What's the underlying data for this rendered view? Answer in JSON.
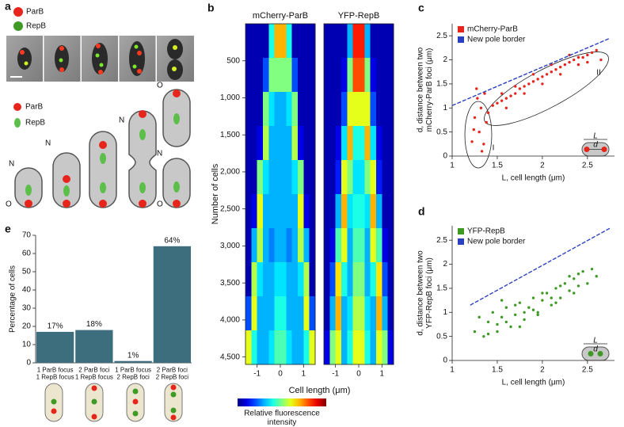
{
  "panel_labels": [
    "a",
    "b",
    "c",
    "d",
    "e"
  ],
  "panel_a": {
    "image_legend": [
      "ParB",
      "RepB"
    ],
    "diagram_legend": [
      "ParB",
      "RepB"
    ],
    "pole_labels": [
      "N",
      "O",
      "N",
      "N",
      "O",
      "N",
      "O"
    ]
  },
  "chart_data": [
    {
      "type": "heatmap",
      "colormap": "jet",
      "zlim": [
        0,
        1
      ],
      "xlabel": "Cell length (μm)",
      "ylabel": "Number of cells",
      "colorbar_label": "Relative fluorescence\nintensity",
      "xlim": [
        -1.5,
        1.5
      ],
      "xticks": [
        -1,
        0,
        1
      ],
      "ylim": [
        0,
        4600
      ],
      "y_inverted": true,
      "yticks": [
        500,
        {
          "value": 1000,
          "label": "1,000"
        },
        {
          "value": 1500,
          "label": "1,500"
        },
        {
          "value": 2000,
          "label": "2,000"
        },
        {
          "value": 2500,
          "label": "2,500"
        },
        {
          "value": 3000,
          "label": "3,000"
        },
        {
          "value": 3500,
          "label": "3,500"
        },
        {
          "value": 4000,
          "label": "4,000"
        },
        {
          "value": 4500,
          "label": "4,500"
        }
      ],
      "xbins": [
        -1.5,
        -1.25,
        -1,
        -0.75,
        -0.5,
        -0.25,
        0,
        0.25,
        0.5,
        0.75,
        1,
        1.25,
        1.5
      ],
      "ybins": [
        0,
        460,
        920,
        1380,
        1840,
        2300,
        2760,
        3220,
        3680,
        4140,
        4600
      ],
      "panels": [
        {
          "title": "mCherry-ParB",
          "z": [
            [
              0.05,
              0.05,
              0.05,
              0.05,
              0.4,
              0.7,
              0.7,
              0.4,
              0.05,
              0.05,
              0.05,
              0.05
            ],
            [
              0.05,
              0.05,
              0.05,
              0.2,
              0.5,
              0.5,
              0.5,
              0.5,
              0.2,
              0.05,
              0.05,
              0.05
            ],
            [
              0.05,
              0.05,
              0.05,
              0.5,
              0.35,
              0.3,
              0.3,
              0.35,
              0.5,
              0.05,
              0.05,
              0.05
            ],
            [
              0.05,
              0.05,
              0.1,
              0.55,
              0.3,
              0.3,
              0.3,
              0.3,
              0.55,
              0.1,
              0.05,
              0.05
            ],
            [
              0.05,
              0.05,
              0.5,
              0.35,
              0.3,
              0.3,
              0.3,
              0.3,
              0.35,
              0.5,
              0.05,
              0.05
            ],
            [
              0.05,
              0.1,
              0.6,
              0.3,
              0.3,
              0.3,
              0.3,
              0.3,
              0.3,
              0.6,
              0.1,
              0.05
            ],
            [
              0.05,
              0.3,
              0.55,
              0.3,
              0.25,
              0.3,
              0.3,
              0.25,
              0.3,
              0.55,
              0.3,
              0.05
            ],
            [
              0.05,
              0.55,
              0.35,
              0.3,
              0.3,
              0.35,
              0.35,
              0.3,
              0.3,
              0.35,
              0.55,
              0.05
            ],
            [
              0.2,
              0.6,
              0.3,
              0.3,
              0.3,
              0.4,
              0.4,
              0.3,
              0.3,
              0.3,
              0.6,
              0.2
            ],
            [
              0.6,
              0.4,
              0.3,
              0.3,
              0.35,
              0.45,
              0.45,
              0.35,
              0.3,
              0.3,
              0.4,
              0.6
            ]
          ]
        },
        {
          "title": "YFP-RepB",
          "z": [
            [
              0.05,
              0.05,
              0.05,
              0.05,
              0.3,
              0.85,
              0.85,
              0.3,
              0.05,
              0.05,
              0.05,
              0.05
            ],
            [
              0.05,
              0.05,
              0.05,
              0.1,
              0.5,
              0.8,
              0.8,
              0.5,
              0.1,
              0.05,
              0.05,
              0.05
            ],
            [
              0.05,
              0.05,
              0.05,
              0.2,
              0.6,
              0.6,
              0.6,
              0.6,
              0.2,
              0.05,
              0.05,
              0.05
            ],
            [
              0.05,
              0.05,
              0.1,
              0.35,
              0.7,
              0.4,
              0.4,
              0.7,
              0.35,
              0.1,
              0.05,
              0.05
            ],
            [
              0.05,
              0.05,
              0.15,
              0.6,
              0.5,
              0.35,
              0.35,
              0.5,
              0.6,
              0.15,
              0.05,
              0.05
            ],
            [
              0.05,
              0.05,
              0.3,
              0.7,
              0.35,
              0.4,
              0.4,
              0.35,
              0.7,
              0.3,
              0.05,
              0.05
            ],
            [
              0.05,
              0.1,
              0.45,
              0.6,
              0.3,
              0.45,
              0.45,
              0.3,
              0.6,
              0.45,
              0.1,
              0.05
            ],
            [
              0.05,
              0.2,
              0.65,
              0.4,
              0.3,
              0.5,
              0.5,
              0.3,
              0.4,
              0.65,
              0.2,
              0.05
            ],
            [
              0.05,
              0.3,
              0.7,
              0.3,
              0.35,
              0.55,
              0.55,
              0.35,
              0.3,
              0.7,
              0.3,
              0.05
            ],
            [
              0.1,
              0.5,
              0.6,
              0.3,
              0.4,
              0.6,
              0.6,
              0.4,
              0.3,
              0.6,
              0.5,
              0.1
            ]
          ]
        }
      ]
    },
    {
      "type": "scatter",
      "xlabel": "L, cell length (μm)",
      "ylabel": "d, distance between two\nmCherry-ParB foci (μm)",
      "xlim": [
        1,
        2.8
      ],
      "xticks": [
        1,
        1.5,
        2,
        2.5
      ],
      "ylim": [
        0,
        2.75
      ],
      "yticks": [
        0,
        0.5,
        1,
        1.5,
        2,
        2.5
      ],
      "annotations": [
        "I",
        "II"
      ],
      "inset_labels": [
        "L",
        "d"
      ],
      "series": [
        {
          "name": "mCherry-ParB",
          "color": "#e8251d",
          "x": [
            1.22,
            1.25,
            1.28,
            1.3,
            1.32,
            1.35,
            1.38,
            1.27,
            1.33,
            1.4,
            1.24,
            1.36,
            1.45,
            1.5,
            1.55,
            1.6,
            1.65,
            1.7,
            1.75,
            1.8,
            1.85,
            1.9,
            1.95,
            2.0,
            2.05,
            2.1,
            2.15,
            2.2,
            2.25,
            2.3,
            2.35,
            2.4,
            2.45,
            2.5,
            2.55,
            2.6,
            1.6,
            1.8,
            2.0,
            2.2,
            2.4,
            1.7,
            1.9,
            2.1,
            2.3,
            1.55,
            2.5,
            2.65
          ],
          "values": [
            0.3,
            0.8,
            1.2,
            0.5,
            1.0,
            0.25,
            0.7,
            1.4,
            0.1,
            0.9,
            0.55,
            1.3,
            1.05,
            1.1,
            1.15,
            1.2,
            1.25,
            1.3,
            1.4,
            1.45,
            1.5,
            1.55,
            1.6,
            1.65,
            1.7,
            1.75,
            1.8,
            1.85,
            1.9,
            1.95,
            2.0,
            2.05,
            2.05,
            2.1,
            2.15,
            2.2,
            1.0,
            1.3,
            1.5,
            1.7,
            1.9,
            1.45,
            1.7,
            1.9,
            2.1,
            1.3,
            1.95,
            2.0
          ]
        },
        {
          "name": "New pole border",
          "color": "#2a3fbf",
          "style": "dashed-line",
          "x": [
            1,
            2.75
          ],
          "values": [
            1.05,
            2.45
          ]
        }
      ]
    },
    {
      "type": "scatter",
      "xlabel": "L, cell length (μm)",
      "ylabel": "d, distance between two\nYFP-RepB foci (μm)",
      "xlim": [
        1,
        2.8
      ],
      "xticks": [
        1,
        1.5,
        2,
        2.5
      ],
      "ylim": [
        0,
        2.8
      ],
      "yticks": [
        0,
        0.5,
        1,
        1.5,
        2,
        2.5
      ],
      "inset_labels": [
        "L",
        "d"
      ],
      "series": [
        {
          "name": "YFP-RepB",
          "color": "#3e9a24",
          "x": [
            1.25,
            1.3,
            1.35,
            1.4,
            1.45,
            1.5,
            1.55,
            1.6,
            1.65,
            1.7,
            1.75,
            1.8,
            1.85,
            1.9,
            1.95,
            2.0,
            2.05,
            2.1,
            2.15,
            2.2,
            2.25,
            2.3,
            2.35,
            2.4,
            2.45,
            2.5,
            2.55,
            2.6,
            1.4,
            1.5,
            1.6,
            1.7,
            1.8,
            1.9,
            2.0,
            2.1,
            2.2,
            2.3,
            2.4,
            1.55,
            1.75,
            1.95,
            2.15,
            2.35
          ],
          "values": [
            0.6,
            0.9,
            0.5,
            0.8,
            1.0,
            0.6,
            0.9,
            1.1,
            0.7,
            0.95,
            1.2,
            0.85,
            1.1,
            1.3,
            1.0,
            1.25,
            1.4,
            1.15,
            1.5,
            1.3,
            1.6,
            1.45,
            1.7,
            1.55,
            1.85,
            1.6,
            1.9,
            1.75,
            0.55,
            0.75,
            0.8,
            1.15,
            1.0,
            1.05,
            1.4,
            1.3,
            1.55,
            1.75,
            1.8,
            1.25,
            0.7,
            0.95,
            1.2,
            1.4
          ]
        },
        {
          "name": "New pole border",
          "color": "#2a3fbf",
          "style": "dashed-line",
          "x": [
            1.2,
            2.75
          ],
          "values": [
            1.15,
            2.75
          ]
        }
      ]
    },
    {
      "type": "bar",
      "ylabel": "Percentage of cells",
      "color": "#3d6e7d",
      "categories": [
        "1 ParB focus\n1 RepB focus",
        "2 ParB foci\n1 RepB focus",
        "1 ParB focus\n2 RepB foci",
        "2 ParB foci\n2 RepB foci"
      ],
      "values": [
        17,
        18,
        1,
        64
      ],
      "value_labels": [
        "17%",
        "18%",
        "1%",
        "64%"
      ],
      "ylim": [
        0,
        70
      ],
      "yticks": [
        0,
        10,
        20,
        30,
        40,
        50,
        60,
        70
      ]
    }
  ]
}
